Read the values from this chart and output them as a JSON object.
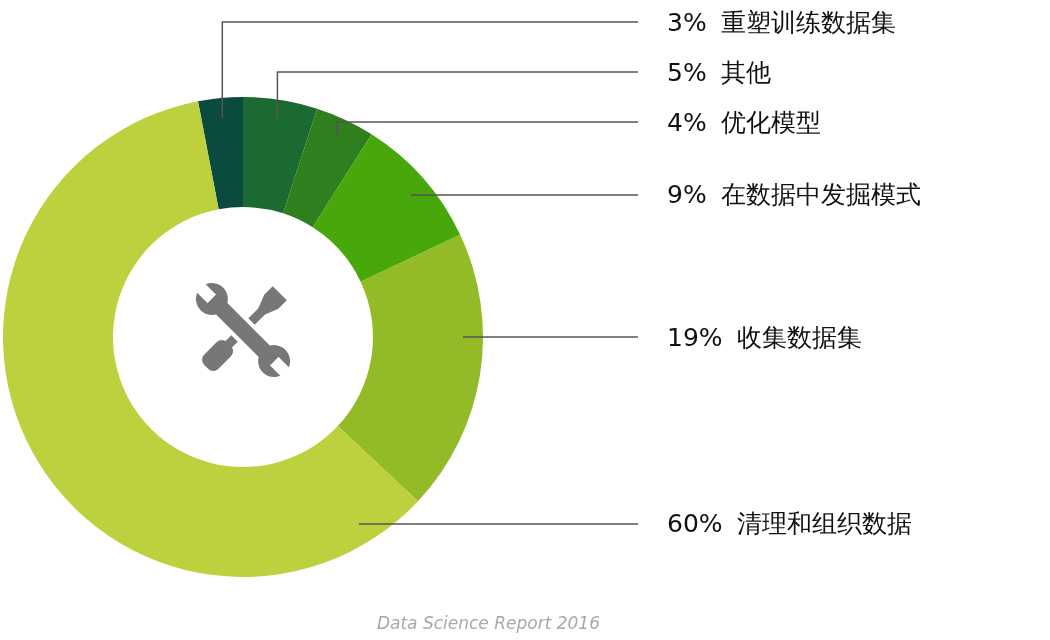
{
  "chart_data": {
    "type": "donut",
    "categories": [
      "重塑训练数据集",
      "其他",
      "优化模型",
      "在数据中发掘模式",
      "收集数据集",
      "清理和组织数据"
    ],
    "values": [
      3,
      5,
      4,
      9,
      19,
      60
    ],
    "colors": [
      "#0b4a3f",
      "#1b6a31",
      "#2f7f1f",
      "#47a70b",
      "#92bb27",
      "#bdd13f"
    ],
    "value_labels": [
      "3%",
      "5%",
      "4%",
      "9%",
      "19%",
      "60%"
    ],
    "annotations": [
      "Data Science Report 2016"
    ]
  }
}
